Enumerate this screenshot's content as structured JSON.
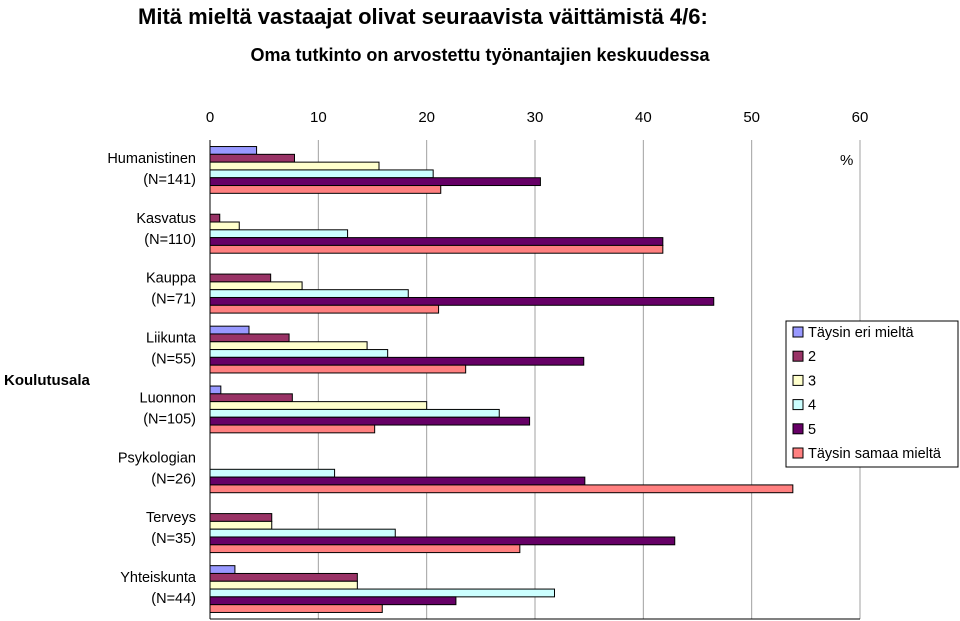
{
  "chart_data": {
    "type": "bar",
    "orientation": "horizontal",
    "title": "Mitä mieltä vastaajat olivat seuraavista väittämistä 4/6:",
    "subtitle": "Oma tutkinto on arvostettu työnantajien keskuudessa",
    "xlabel": "%",
    "ylabel": "Koulutusala",
    "xlim": [
      0,
      60
    ],
    "xticks": [
      "0",
      "10",
      "20",
      "30",
      "40",
      "50",
      "60"
    ],
    "grid": true,
    "legend_position": "right",
    "categories": [
      [
        "Humanistinen",
        "(N=141)"
      ],
      [
        "Kasvatus",
        "(N=110)"
      ],
      [
        "Kauppa",
        "(N=71)"
      ],
      [
        "Liikunta",
        "(N=55)"
      ],
      [
        "Luonnon",
        "(N=105)"
      ],
      [
        "Psykologian",
        "(N=26)"
      ],
      [
        "Terveys",
        "(N=35)"
      ],
      [
        "Yhteiskunta",
        "(N=44)"
      ]
    ],
    "series": [
      {
        "name": "Täysin eri mieltä",
        "color": "#9999FF",
        "values": [
          4.3,
          0,
          0,
          3.6,
          1.0,
          0,
          0,
          2.3
        ]
      },
      {
        "name": "2",
        "color": "#993366",
        "values": [
          7.8,
          0.9,
          5.6,
          7.3,
          7.6,
          0,
          5.7,
          13.6
        ]
      },
      {
        "name": "3",
        "color": "#FFFFCC",
        "values": [
          15.6,
          2.7,
          8.5,
          14.5,
          20.0,
          0,
          5.7,
          13.6
        ]
      },
      {
        "name": "4",
        "color": "#CCFFFF",
        "values": [
          20.6,
          12.7,
          18.3,
          16.4,
          26.7,
          11.5,
          17.1,
          31.8
        ]
      },
      {
        "name": "5",
        "color": "#660066",
        "values": [
          30.5,
          41.8,
          46.5,
          34.5,
          29.5,
          34.6,
          42.9,
          22.7
        ]
      },
      {
        "name": "Täysin samaa mieltä",
        "color": "#FF8080",
        "values": [
          21.3,
          41.8,
          21.1,
          23.6,
          15.2,
          53.8,
          28.6,
          15.9
        ]
      }
    ]
  }
}
